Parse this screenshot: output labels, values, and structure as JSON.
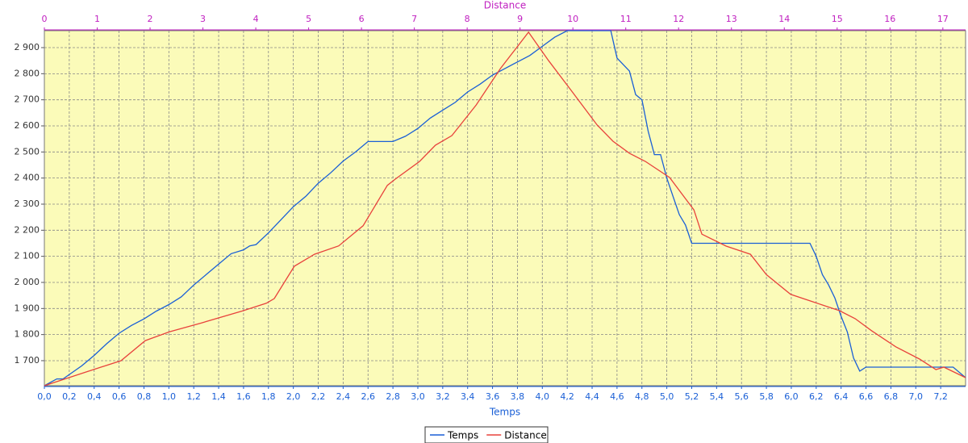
{
  "chart_data": {
    "type": "line",
    "xlabel": "Temps",
    "x2label": "Distance",
    "xlim": [
      0,
      7.4
    ],
    "x2lim": [
      0,
      17.43
    ],
    "ylim": [
      1604,
      2965
    ],
    "xticks": [
      {
        "value": 0,
        "label": "0,0"
      },
      {
        "value": 0.2,
        "label": "0,2"
      },
      {
        "value": 0.4,
        "label": "0,4"
      },
      {
        "value": 0.6,
        "label": "0,6"
      },
      {
        "value": 0.8,
        "label": "0,8"
      },
      {
        "value": 1,
        "label": "1,0"
      },
      {
        "value": 1.2,
        "label": "1,2"
      },
      {
        "value": 1.4,
        "label": "1,4"
      },
      {
        "value": 1.6,
        "label": "1,6"
      },
      {
        "value": 1.8,
        "label": "1,8"
      },
      {
        "value": 2,
        "label": "2,0"
      },
      {
        "value": 2.2,
        "label": "2,2"
      },
      {
        "value": 2.4,
        "label": "2,4"
      },
      {
        "value": 2.6,
        "label": "2,6"
      },
      {
        "value": 2.8,
        "label": "2,8"
      },
      {
        "value": 3,
        "label": "3,0"
      },
      {
        "value": 3.2,
        "label": "3,2"
      },
      {
        "value": 3.4,
        "label": "3,4"
      },
      {
        "value": 3.6,
        "label": "3,6"
      },
      {
        "value": 3.8,
        "label": "3,8"
      },
      {
        "value": 4,
        "label": "4,0"
      },
      {
        "value": 4.2,
        "label": "4,2"
      },
      {
        "value": 4.4,
        "label": "4,4"
      },
      {
        "value": 4.6,
        "label": "4,6"
      },
      {
        "value": 4.8,
        "label": "4,8"
      },
      {
        "value": 5,
        "label": "5,0"
      },
      {
        "value": 5.2,
        "label": "5,2"
      },
      {
        "value": 5.4,
        "label": "5,4"
      },
      {
        "value": 5.6,
        "label": "5,6"
      },
      {
        "value": 5.8,
        "label": "5,8"
      },
      {
        "value": 6,
        "label": "6,0"
      },
      {
        "value": 6.2,
        "label": "6,2"
      },
      {
        "value": 6.4,
        "label": "6,4"
      },
      {
        "value": 6.6,
        "label": "6,6"
      },
      {
        "value": 6.8,
        "label": "6,8"
      },
      {
        "value": 7,
        "label": "7,0"
      },
      {
        "value": 7.2,
        "label": "7,2"
      }
    ],
    "x2ticks": [
      0,
      1,
      2,
      3,
      4,
      5,
      6,
      7,
      8,
      9,
      10,
      11,
      12,
      13,
      14,
      15,
      16,
      17
    ],
    "yticks": [
      {
        "value": 1700,
        "label": "1 700"
      },
      {
        "value": 1800,
        "label": "1 800"
      },
      {
        "value": 1900,
        "label": "1 900"
      },
      {
        "value": 2000,
        "label": "2 000"
      },
      {
        "value": 2100,
        "label": "2 100"
      },
      {
        "value": 2200,
        "label": "2 200"
      },
      {
        "value": 2300,
        "label": "2 300"
      },
      {
        "value": 2400,
        "label": "2 400"
      },
      {
        "value": 2500,
        "label": "2 500"
      },
      {
        "value": 2600,
        "label": "2 600"
      },
      {
        "value": 2700,
        "label": "2 700"
      },
      {
        "value": 2800,
        "label": "2 800"
      },
      {
        "value": 2900,
        "label": "2 900"
      }
    ],
    "grid": true,
    "series": [
      {
        "name": "Temps",
        "color": "#1a5fd6",
        "x": [
          0,
          0.1,
          0.15,
          0.3,
          0.4,
          0.5,
          0.6,
          0.7,
          0.8,
          0.9,
          1.0,
          1.1,
          1.2,
          1.3,
          1.4,
          1.5,
          1.6,
          1.65,
          1.7,
          1.8,
          1.9,
          2.0,
          2.1,
          2.2,
          2.3,
          2.4,
          2.5,
          2.6,
          2.8,
          2.9,
          3.0,
          3.1,
          3.2,
          3.3,
          3.4,
          3.5,
          3.6,
          3.7,
          3.8,
          3.9,
          4.0,
          4.1,
          4.2,
          4.55,
          4.6,
          4.7,
          4.75,
          4.8,
          4.85,
          4.9,
          4.95,
          5.0,
          5.05,
          5.1,
          5.15,
          5.2,
          6.15,
          6.2,
          6.25,
          6.3,
          6.35,
          6.4,
          6.45,
          6.5,
          6.55,
          6.6,
          7.3,
          7.4
        ],
        "values": [
          1604,
          1630,
          1630,
          1680,
          1720,
          1765,
          1805,
          1835,
          1860,
          1890,
          1915,
          1945,
          1990,
          2030,
          2070,
          2110,
          2125,
          2140,
          2145,
          2190,
          2240,
          2290,
          2330,
          2380,
          2420,
          2465,
          2500,
          2540,
          2540,
          2560,
          2590,
          2630,
          2660,
          2690,
          2730,
          2760,
          2795,
          2820,
          2845,
          2870,
          2905,
          2940,
          2965,
          2965,
          2860,
          2810,
          2720,
          2700,
          2580,
          2490,
          2490,
          2400,
          2330,
          2260,
          2220,
          2150,
          2150,
          2100,
          2030,
          1990,
          1940,
          1870,
          1810,
          1710,
          1660,
          1675,
          1675,
          1635
        ]
      },
      {
        "name": "Distance",
        "color": "#e8423c",
        "axis": "x2",
        "x": [
          0,
          0.69,
          1.45,
          1.91,
          2.37,
          2.98,
          3.74,
          4.2,
          4.35,
          4.73,
          5.11,
          5.57,
          6.03,
          6.49,
          6.64,
          7.1,
          7.4,
          7.71,
          8.17,
          8.63,
          9.16,
          9.54,
          10.0,
          10.46,
          10.76,
          11.07,
          11.37,
          11.83,
          12.29,
          12.44,
          12.9,
          13.36,
          13.66,
          14.12,
          14.58,
          15.04,
          15.34,
          15.65,
          16.11,
          16.56,
          16.87,
          17.02,
          17.43
        ],
        "values": [
          1604,
          1650,
          1700,
          1777,
          1811,
          1845,
          1890,
          1920,
          1938,
          2062,
          2108,
          2140,
          2217,
          2372,
          2396,
          2464,
          2526,
          2563,
          2680,
          2820,
          2959,
          2850,
          2727,
          2603,
          2541,
          2495,
          2464,
          2402,
          2278,
          2185,
          2139,
          2108,
          2030,
          1954,
          1923,
          1892,
          1861,
          1815,
          1753,
          1706,
          1666,
          1675,
          1635
        ]
      }
    ]
  }
}
